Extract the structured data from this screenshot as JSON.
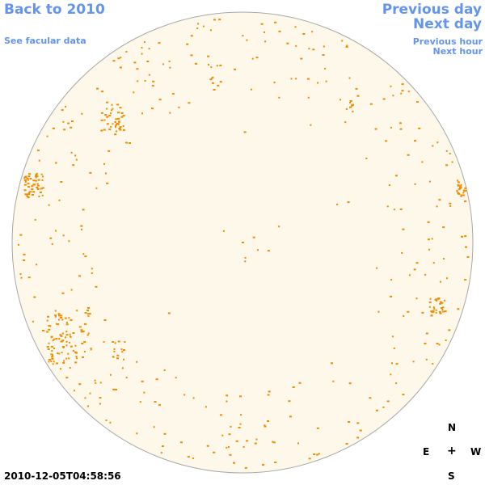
{
  "nav": {
    "back_label": "Back to 2010",
    "facular_label": "See facular data",
    "prev_day_label": "Previous day",
    "next_day_label": "Next day",
    "prev_hour_label": "Previous hour",
    "next_hour_label": "Next hour"
  },
  "timestamp": "2010-12-05T04:58:56",
  "compass": {
    "north": "N",
    "south": "S",
    "east": "E",
    "west": "W",
    "center": "+"
  },
  "colors": {
    "link": "#6495ed",
    "disk_fill": "#fdf8ea",
    "disk_outline": "#a8a8a8",
    "facula": "#f08c00",
    "background": "#ffffff"
  },
  "icons": {
    "solar_disk": "solar-disk-icon",
    "compass": "compass-plus-icon"
  }
}
